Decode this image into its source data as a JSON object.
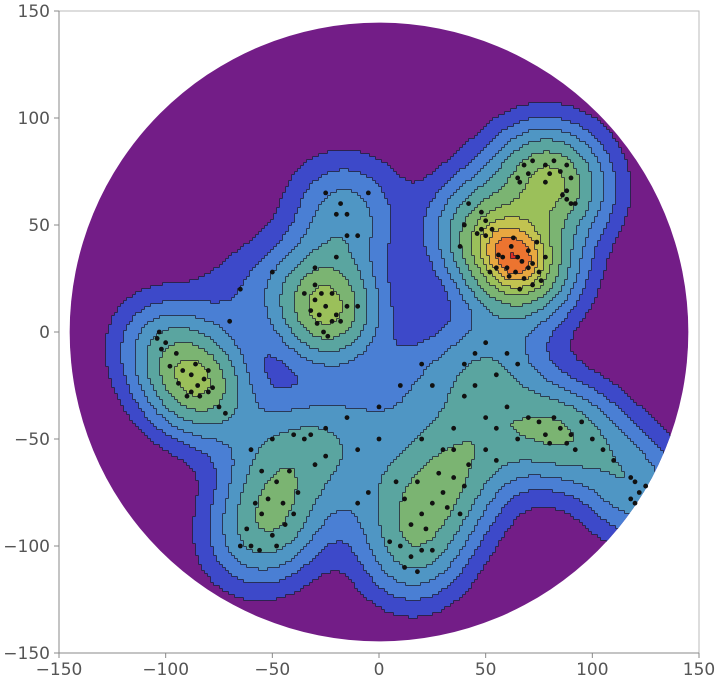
{
  "chart_data": {
    "type": "contour",
    "title": "",
    "xlabel": "",
    "ylabel": "",
    "xlim": [
      -150,
      150
    ],
    "ylim": [
      -150,
      150
    ],
    "x_ticks": [
      -150,
      -100,
      -50,
      0,
      50,
      100,
      150
    ],
    "y_ticks": [
      -150,
      -100,
      -50,
      0,
      50,
      100,
      150
    ],
    "x_tick_labels": [
      "−150",
      "−100",
      "−50",
      "0",
      "50",
      "100",
      "150"
    ],
    "y_tick_labels": [
      "−150",
      "−100",
      "−50",
      "0",
      "50",
      "100",
      "150"
    ],
    "domain": {
      "shape": "disk",
      "center": [
        0,
        0
      ],
      "radius": 145
    },
    "grid": false,
    "legend": "none",
    "colors": {
      "outside": "#731d87",
      "levels": [
        "#3d49c9",
        "#4a7fd4",
        "#4f96c4",
        "#5aa5a0",
        "#7bb472",
        "#9bc05a",
        "#c2c350",
        "#e8a840",
        "#ec7430",
        "#dd2a24"
      ]
    },
    "contour_levels": [
      0.06,
      0.14,
      0.24,
      0.36,
      0.5,
      0.64,
      0.75,
      0.84,
      0.92,
      1.0
    ],
    "density_peaks": [
      {
        "x": 68,
        "y": 30
      },
      {
        "x": 73,
        "y": 76
      },
      {
        "x": -85,
        "y": -20
      },
      {
        "x": -28,
        "y": 8
      },
      {
        "x": -45,
        "y": -80
      },
      {
        "x": 30,
        "y": -75
      },
      {
        "x": 85,
        "y": -45
      },
      {
        "x": 120,
        "y": -70
      }
    ],
    "points": [
      [
        65,
        35
      ],
      [
        70,
        38
      ],
      [
        72,
        32
      ],
      [
        60,
        30
      ],
      [
        68,
        25
      ],
      [
        75,
        28
      ],
      [
        62,
        40
      ],
      [
        74,
        42
      ],
      [
        66,
        20
      ],
      [
        58,
        35
      ],
      [
        72,
        22
      ],
      [
        78,
        35
      ],
      [
        64,
        28
      ],
      [
        70,
        30
      ],
      [
        67,
        33
      ],
      [
        61,
        26
      ],
      [
        76,
        24
      ],
      [
        63,
        44
      ],
      [
        55,
        30
      ],
      [
        52,
        28
      ],
      [
        50,
        45
      ],
      [
        48,
        48
      ],
      [
        46,
        46
      ],
      [
        53,
        48
      ],
      [
        50,
        52
      ],
      [
        56,
        36
      ],
      [
        68,
        78
      ],
      [
        72,
        80
      ],
      [
        78,
        78
      ],
      [
        65,
        72
      ],
      [
        82,
        80
      ],
      [
        70,
        74
      ],
      [
        78,
        70
      ],
      [
        85,
        75
      ],
      [
        88,
        78
      ],
      [
        90,
        72
      ],
      [
        66,
        70
      ],
      [
        80,
        74
      ],
      [
        88,
        62
      ],
      [
        90,
        60
      ],
      [
        86,
        64
      ],
      [
        92,
        60
      ],
      [
        88,
        66
      ],
      [
        40,
        50
      ],
      [
        42,
        60
      ],
      [
        48,
        56
      ],
      [
        38,
        40
      ],
      [
        -88,
        -20
      ],
      [
        -92,
        -18
      ],
      [
        -85,
        -25
      ],
      [
        -80,
        -28
      ],
      [
        -95,
        -10
      ],
      [
        -100,
        -5
      ],
      [
        -102,
        -8
      ],
      [
        -90,
        -30
      ],
      [
        -82,
        -22
      ],
      [
        -86,
        -15
      ],
      [
        -84,
        -30
      ],
      [
        -78,
        -26
      ],
      [
        -75,
        -35
      ],
      [
        -72,
        -38
      ],
      [
        -94,
        -24
      ],
      [
        -88,
        -28
      ],
      [
        -98,
        -16
      ],
      [
        -80,
        -18
      ],
      [
        -103,
        0
      ],
      [
        -104,
        -3
      ],
      [
        -28,
        8
      ],
      [
        -25,
        12
      ],
      [
        -30,
        15
      ],
      [
        -22,
        5
      ],
      [
        -26,
        0
      ],
      [
        -20,
        8
      ],
      [
        -32,
        10
      ],
      [
        -24,
        -2
      ],
      [
        -27,
        18
      ],
      [
        -29,
        4
      ],
      [
        -18,
        5
      ],
      [
        -35,
        18
      ],
      [
        -30,
        22
      ],
      [
        -22,
        18
      ],
      [
        -15,
        12
      ],
      [
        -10,
        12
      ],
      [
        -45,
        -80
      ],
      [
        -55,
        -85
      ],
      [
        -50,
        -95
      ],
      [
        -60,
        -100
      ],
      [
        -40,
        -85
      ],
      [
        -48,
        -70
      ],
      [
        -52,
        -78
      ],
      [
        -58,
        -80
      ],
      [
        -62,
        -92
      ],
      [
        -65,
        -100
      ],
      [
        -44,
        -90
      ],
      [
        -38,
        -75
      ],
      [
        -30,
        -62
      ],
      [
        -25,
        -58
      ],
      [
        -35,
        -50
      ],
      [
        -50,
        -50
      ],
      [
        -60,
        -55
      ],
      [
        -55,
        -65
      ],
      [
        -42,
        -65
      ],
      [
        -32,
        -48
      ],
      [
        -48,
        -100
      ],
      [
        -56,
        -102
      ],
      [
        30,
        -75
      ],
      [
        25,
        -80
      ],
      [
        35,
        -68
      ],
      [
        20,
        -85
      ],
      [
        40,
        -72
      ],
      [
        28,
        -66
      ],
      [
        15,
        -90
      ],
      [
        22,
        -92
      ],
      [
        32,
        -82
      ],
      [
        38,
        -85
      ],
      [
        12,
        -78
      ],
      [
        18,
        -70
      ],
      [
        42,
        -62
      ],
      [
        8,
        -70
      ],
      [
        -5,
        -75
      ],
      [
        -10,
        -80
      ],
      [
        85,
        -45
      ],
      [
        90,
        -48
      ],
      [
        95,
        -42
      ],
      [
        82,
        -40
      ],
      [
        78,
        -48
      ],
      [
        88,
        -52
      ],
      [
        100,
        -50
      ],
      [
        105,
        -55
      ],
      [
        110,
        -60
      ],
      [
        80,
        -52
      ],
      [
        92,
        -55
      ],
      [
        75,
        -42
      ],
      [
        118,
        -68
      ],
      [
        120,
        -70
      ],
      [
        122,
        -75
      ],
      [
        125,
        -72
      ],
      [
        120,
        -80
      ],
      [
        118,
        -78
      ],
      [
        10,
        -100
      ],
      [
        12,
        -110
      ],
      [
        15,
        -105
      ],
      [
        20,
        -102
      ],
      [
        25,
        -102
      ],
      [
        18,
        -112
      ],
      [
        5,
        -98
      ],
      [
        -10,
        45
      ],
      [
        -15,
        45
      ],
      [
        -20,
        35
      ],
      [
        -30,
        30
      ],
      [
        -50,
        28
      ],
      [
        -65,
        20
      ],
      [
        -70,
        5
      ],
      [
        -5,
        65
      ],
      [
        -18,
        60
      ],
      [
        -20,
        55
      ],
      [
        -15,
        55
      ],
      [
        -25,
        65
      ],
      [
        20,
        -15
      ],
      [
        25,
        -25
      ],
      [
        40,
        -15
      ],
      [
        45,
        -25
      ],
      [
        55,
        -20
      ],
      [
        60,
        -35
      ],
      [
        50,
        -40
      ],
      [
        55,
        -45
      ],
      [
        65,
        -50
      ],
      [
        70,
        -40
      ],
      [
        45,
        -10
      ],
      [
        60,
        -10
      ],
      [
        50,
        -5
      ],
      [
        65,
        -15
      ],
      [
        40,
        -30
      ],
      [
        35,
        -45
      ],
      [
        35,
        -55
      ],
      [
        50,
        -55
      ],
      [
        55,
        -60
      ],
      [
        30,
        -55
      ],
      [
        20,
        -50
      ],
      [
        0,
        -50
      ],
      [
        -10,
        -55
      ],
      [
        -25,
        -45
      ],
      [
        -40,
        -48
      ],
      [
        10,
        -25
      ],
      [
        0,
        -35
      ],
      [
        -15,
        -40
      ]
    ]
  }
}
